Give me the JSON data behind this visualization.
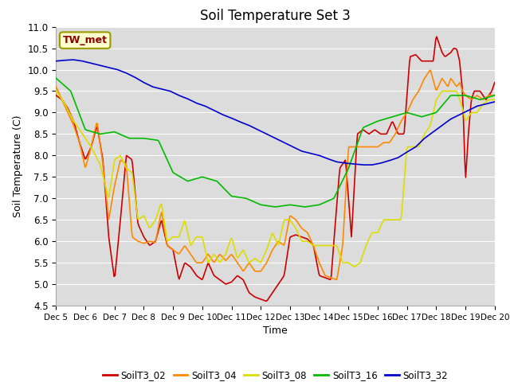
{
  "title": "Soil Temperature Set 3",
  "xlabel": "Time",
  "ylabel": "Soil Temperature (C)",
  "ylim": [
    4.5,
    11.0
  ],
  "xtick_labels": [
    "Dec 5",
    "Dec 6",
    "Dec 7",
    "Dec 8",
    "Dec 9",
    "Dec 10",
    "Dec 11",
    "Dec 12",
    "Dec 13",
    "Dec 14",
    "Dec 15",
    "Dec 16",
    "Dec 17",
    "Dec 18",
    "Dec 19",
    "Dec 20"
  ],
  "plot_bg_color": "#dcdcdc",
  "grid_color": "#ffffff",
  "series": {
    "SoilT3_02": {
      "color": "#cc0000",
      "lw": 1.2
    },
    "SoilT3_04": {
      "color": "#ff8800",
      "lw": 1.2
    },
    "SoilT3_08": {
      "color": "#dddd00",
      "lw": 1.2
    },
    "SoilT3_16": {
      "color": "#00bb00",
      "lw": 1.2
    },
    "SoilT3_32": {
      "color": "#0000cc",
      "lw": 1.2
    }
  },
  "tw_met_box": {
    "text": "TW_met",
    "text_color": "#8b0000",
    "bg_color": "#ffffcc",
    "edge_color": "#999900"
  },
  "title_fontsize": 12,
  "yticks": [
    4.5,
    5.0,
    5.5,
    6.0,
    6.5,
    7.0,
    7.5,
    8.0,
    8.5,
    9.0,
    9.5,
    10.0,
    10.5,
    11.0
  ],
  "t02_x": [
    0,
    0.2,
    0.4,
    0.6,
    0.8,
    1.0,
    1.2,
    1.4,
    1.6,
    1.8,
    2.0,
    2.1,
    2.2,
    2.4,
    2.6,
    2.8,
    3.0,
    3.2,
    3.4,
    3.6,
    3.8,
    4.0,
    4.2,
    4.4,
    4.6,
    4.8,
    5.0,
    5.2,
    5.4,
    5.6,
    5.8,
    6.0,
    6.2,
    6.4,
    6.6,
    6.8,
    7.0,
    7.2,
    7.4,
    7.6,
    7.8,
    8.0,
    8.2,
    8.4,
    8.6,
    8.8,
    9.0,
    9.2,
    9.4,
    9.5,
    9.7,
    9.9,
    10.1,
    10.3,
    10.5,
    10.7,
    10.9,
    11.1,
    11.3,
    11.5,
    11.7,
    11.9,
    12.1,
    12.3,
    12.5,
    12.7,
    12.9,
    13.0,
    13.1,
    13.2,
    13.3,
    13.4,
    13.5,
    13.6,
    13.7,
    13.8,
    13.9,
    14.0,
    14.1,
    14.2,
    14.3,
    14.5,
    14.7,
    14.9,
    15.0
  ],
  "t02_y": [
    9.4,
    9.3,
    9.1,
    8.8,
    8.3,
    7.9,
    8.2,
    8.7,
    7.9,
    6.1,
    5.1,
    5.8,
    6.5,
    8.0,
    7.9,
    6.4,
    6.1,
    5.9,
    6.0,
    6.5,
    5.9,
    5.8,
    5.1,
    5.5,
    5.4,
    5.2,
    5.1,
    5.5,
    5.2,
    5.1,
    5.0,
    5.05,
    5.2,
    5.1,
    4.8,
    4.7,
    4.65,
    4.6,
    4.8,
    5.0,
    5.2,
    6.1,
    6.15,
    6.1,
    6.05,
    5.9,
    5.2,
    5.15,
    5.1,
    6.0,
    7.7,
    7.9,
    6.1,
    8.5,
    8.6,
    8.5,
    8.6,
    8.5,
    8.5,
    8.8,
    8.5,
    8.5,
    10.3,
    10.35,
    10.2,
    10.2,
    10.2,
    10.8,
    10.6,
    10.4,
    10.3,
    10.35,
    10.4,
    10.5,
    10.48,
    10.2,
    9.5,
    7.4,
    8.5,
    9.3,
    9.5,
    9.5,
    9.3,
    9.5,
    9.7
  ],
  "t04_x": [
    0,
    0.2,
    0.4,
    0.6,
    0.8,
    1.0,
    1.2,
    1.4,
    1.6,
    1.8,
    2.0,
    2.2,
    2.4,
    2.6,
    2.8,
    3.0,
    3.2,
    3.4,
    3.6,
    3.8,
    4.0,
    4.2,
    4.4,
    4.6,
    4.8,
    5.0,
    5.2,
    5.4,
    5.6,
    5.8,
    6.0,
    6.2,
    6.4,
    6.6,
    6.8,
    7.0,
    7.2,
    7.4,
    7.6,
    7.8,
    8.0,
    8.2,
    8.4,
    8.6,
    8.8,
    9.0,
    9.2,
    9.4,
    9.6,
    9.8,
    10.0,
    10.2,
    10.4,
    10.6,
    10.8,
    11.0,
    11.2,
    11.4,
    11.6,
    11.8,
    12.0,
    12.2,
    12.4,
    12.6,
    12.8,
    13.0,
    13.2,
    13.4,
    13.5,
    13.6,
    13.7,
    13.8,
    13.9,
    14.0,
    14.2,
    14.4,
    14.6,
    14.8,
    15.0
  ],
  "t04_y": [
    9.6,
    9.3,
    9.0,
    8.7,
    8.3,
    7.7,
    8.2,
    8.8,
    7.8,
    6.5,
    7.3,
    7.9,
    7.8,
    6.1,
    6.0,
    5.95,
    6.0,
    5.97,
    6.7,
    5.9,
    5.8,
    5.7,
    5.9,
    5.7,
    5.5,
    5.5,
    5.7,
    5.5,
    5.7,
    5.55,
    5.7,
    5.5,
    5.3,
    5.5,
    5.3,
    5.3,
    5.5,
    5.8,
    6.0,
    5.9,
    6.6,
    6.5,
    6.3,
    6.2,
    5.9,
    5.5,
    5.2,
    5.15,
    5.1,
    5.9,
    8.2,
    8.2,
    8.2,
    8.2,
    8.2,
    8.2,
    8.3,
    8.3,
    8.5,
    8.8,
    9.0,
    9.3,
    9.5,
    9.8,
    10.0,
    9.5,
    9.8,
    9.6,
    9.8,
    9.7,
    9.6,
    9.7,
    9.5,
    9.4,
    9.3,
    9.4,
    9.3,
    9.4,
    9.4
  ],
  "t08_x": [
    0,
    0.3,
    0.6,
    0.9,
    1.2,
    1.5,
    1.8,
    2.0,
    2.2,
    2.4,
    2.6,
    2.8,
    3.0,
    3.2,
    3.4,
    3.6,
    3.8,
    4.0,
    4.2,
    4.4,
    4.6,
    4.8,
    5.0,
    5.2,
    5.4,
    5.6,
    5.8,
    6.0,
    6.2,
    6.4,
    6.6,
    6.8,
    7.0,
    7.2,
    7.4,
    7.6,
    7.8,
    8.0,
    8.2,
    8.4,
    8.6,
    8.8,
    9.0,
    9.2,
    9.4,
    9.6,
    9.8,
    10.0,
    10.2,
    10.4,
    10.6,
    10.8,
    11.0,
    11.2,
    11.4,
    11.6,
    11.8,
    12.0,
    12.2,
    12.4,
    12.6,
    12.8,
    13.0,
    13.2,
    13.4,
    13.5,
    13.6,
    13.7,
    13.8,
    13.9,
    14.0,
    14.2,
    14.4,
    14.6,
    14.8,
    15.0
  ],
  "t08_y": [
    9.5,
    9.2,
    8.8,
    8.5,
    8.2,
    7.8,
    7.0,
    7.9,
    8.0,
    7.7,
    7.6,
    6.5,
    6.6,
    6.3,
    6.5,
    6.9,
    6.0,
    6.1,
    6.1,
    6.5,
    5.9,
    6.1,
    6.1,
    5.5,
    5.7,
    5.5,
    5.7,
    6.1,
    5.6,
    5.8,
    5.5,
    5.6,
    5.5,
    5.8,
    6.2,
    5.9,
    6.5,
    6.5,
    6.3,
    6.0,
    6.0,
    5.9,
    5.9,
    5.9,
    5.9,
    5.9,
    5.5,
    5.5,
    5.4,
    5.5,
    5.9,
    6.2,
    6.2,
    6.5,
    6.5,
    6.5,
    6.5,
    8.2,
    8.2,
    8.2,
    8.5,
    8.7,
    9.3,
    9.5,
    9.5,
    9.5,
    9.5,
    9.5,
    9.3,
    9.1,
    8.8,
    9.0,
    9.0,
    9.2,
    9.3,
    9.3
  ],
  "t16_x": [
    0,
    0.5,
    1.0,
    1.5,
    2.0,
    2.5,
    3.0,
    3.5,
    4.0,
    4.5,
    5.0,
    5.5,
    6.0,
    6.5,
    7.0,
    7.5,
    8.0,
    8.5,
    9.0,
    9.5,
    10.0,
    10.5,
    11.0,
    11.5,
    12.0,
    12.5,
    13.0,
    13.5,
    14.0,
    14.5,
    15.0
  ],
  "t16_y": [
    9.8,
    9.5,
    8.6,
    8.5,
    8.55,
    8.4,
    8.4,
    8.35,
    7.6,
    7.4,
    7.5,
    7.4,
    7.05,
    7.0,
    6.85,
    6.8,
    6.85,
    6.8,
    6.85,
    7.0,
    7.7,
    8.65,
    8.8,
    8.9,
    9.0,
    8.9,
    9.0,
    9.4,
    9.4,
    9.3,
    9.4
  ],
  "t32_x": [
    0,
    0.3,
    0.6,
    0.9,
    1.2,
    1.5,
    1.8,
    2.1,
    2.4,
    2.7,
    3.0,
    3.3,
    3.6,
    3.9,
    4.2,
    4.5,
    4.8,
    5.1,
    5.4,
    5.7,
    6.0,
    6.3,
    6.6,
    6.9,
    7.2,
    7.5,
    7.8,
    8.1,
    8.4,
    8.7,
    9.0,
    9.3,
    9.6,
    9.9,
    10.2,
    10.5,
    10.8,
    11.1,
    11.4,
    11.7,
    12.0,
    12.3,
    12.6,
    12.9,
    13.2,
    13.5,
    13.8,
    14.1,
    14.4,
    14.7,
    15.0
  ],
  "t32_y": [
    10.2,
    10.22,
    10.23,
    10.2,
    10.15,
    10.1,
    10.05,
    10.0,
    9.92,
    9.82,
    9.7,
    9.6,
    9.55,
    9.5,
    9.4,
    9.32,
    9.22,
    9.15,
    9.05,
    8.95,
    8.87,
    8.78,
    8.7,
    8.6,
    8.5,
    8.4,
    8.3,
    8.2,
    8.1,
    8.05,
    8.0,
    7.92,
    7.85,
    7.82,
    7.8,
    7.78,
    7.78,
    7.82,
    7.88,
    7.95,
    8.08,
    8.2,
    8.4,
    8.55,
    8.7,
    8.85,
    8.95,
    9.05,
    9.15,
    9.2,
    9.25
  ]
}
